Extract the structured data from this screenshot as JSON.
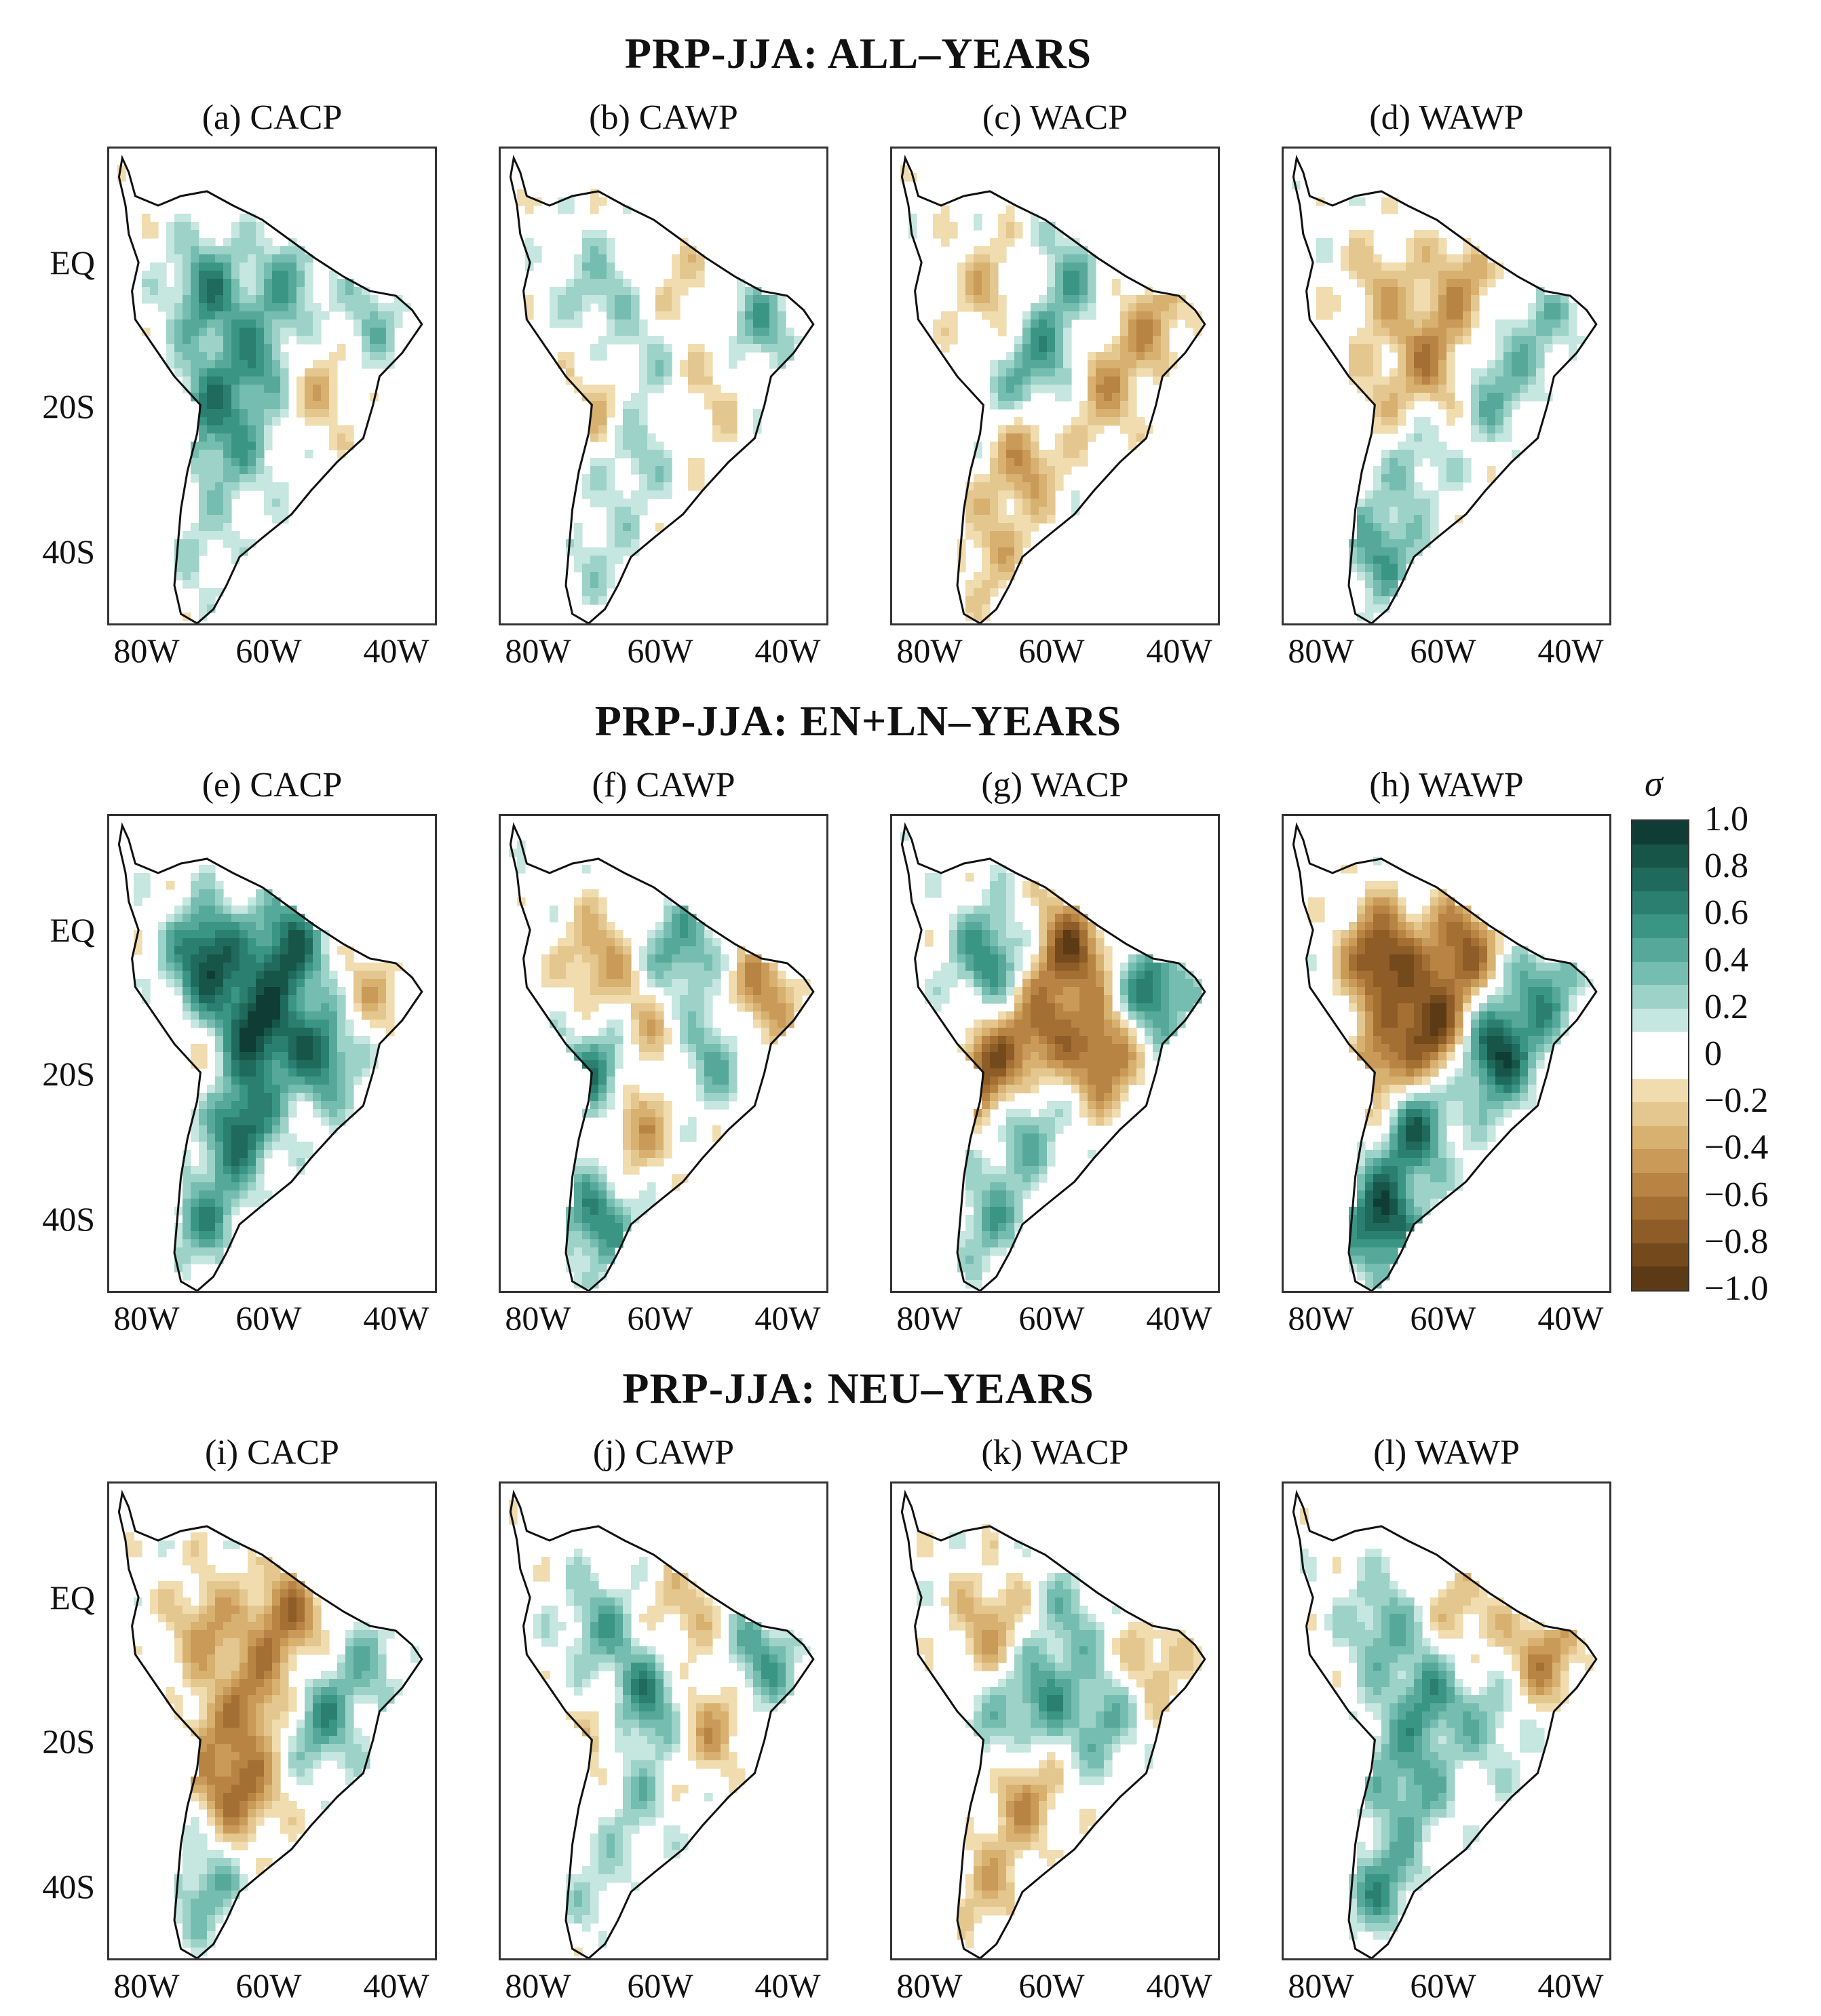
{
  "rows": [
    {
      "title": "PRP-JJA: ALL–YEARS",
      "panels": [
        {
          "label": "(a) CACP",
          "pattern": [
            0.6,
            0.4,
            0.3,
            0.5,
            -0.3,
            0.3,
            0.5,
            0.2
          ]
        },
        {
          "label": "(b) CAWP",
          "pattern": [
            0.3,
            -0.2,
            0.4,
            0.2,
            -0.2,
            0.3,
            -0.3,
            0.2
          ]
        },
        {
          "label": "(c) WACP",
          "pattern": [
            -0.3,
            0.4,
            -0.4,
            0.5,
            -0.4,
            -0.5,
            0.2,
            -0.3
          ]
        },
        {
          "label": "(d) WAWP",
          "pattern": [
            -0.3,
            -0.4,
            0.3,
            -0.5,
            0.4,
            0.3,
            -0.2,
            0.5
          ]
        }
      ]
    },
    {
      "title": "PRP-JJA: EN+LN–YEARS",
      "panels": [
        {
          "label": "(e) CACP",
          "pattern": [
            0.9,
            0.8,
            -0.3,
            0.9,
            0.7,
            0.8,
            -0.2,
            0.5
          ]
        },
        {
          "label": "(f) CAWP",
          "pattern": [
            -0.4,
            0.5,
            -0.5,
            -0.3,
            0.4,
            -0.5,
            0.7,
            0.6
          ]
        },
        {
          "label": "(g) WACP",
          "pattern": [
            0.6,
            -0.8,
            0.7,
            -0.6,
            -0.7,
            0.5,
            -0.8,
            0.4
          ]
        },
        {
          "label": "(h) WAWP",
          "pattern": [
            -0.9,
            -0.7,
            0.5,
            -0.9,
            0.9,
            0.8,
            -0.6,
            0.9
          ]
        }
      ]
    },
    {
      "title": "PRP-JJA: NEU–YEARS",
      "panels": [
        {
          "label": "(i) CACP",
          "pattern": [
            -0.4,
            -0.6,
            0.3,
            -0.5,
            0.5,
            -0.6,
            -0.3,
            0.4
          ]
        },
        {
          "label": "(j) CAWP",
          "pattern": [
            0.4,
            -0.3,
            0.5,
            0.6,
            -0.4,
            0.3,
            -0.3,
            0.2
          ]
        },
        {
          "label": "(k) WACP",
          "pattern": [
            -0.4,
            0.3,
            -0.3,
            0.5,
            0.4,
            -0.5,
            0.3,
            -0.3
          ]
        },
        {
          "label": "(l) WAWP",
          "pattern": [
            0.4,
            -0.3,
            -0.5,
            0.5,
            0.3,
            0.4,
            0.2,
            0.5
          ]
        }
      ]
    }
  ],
  "y_ticks": [
    "EQ",
    "20S",
    "40S"
  ],
  "x_ticks": [
    "80W",
    "60W",
    "40W"
  ],
  "colorbar": {
    "symbol": "σ",
    "labels": [
      "1.0",
      "0.8",
      "0.6",
      "0.4",
      "0.2",
      "0",
      "−0.2",
      "−0.4",
      "−0.6",
      "−0.8",
      "−1.0"
    ],
    "colors": [
      "#0f3d35",
      "#175549",
      "#1f6a5c",
      "#2a7f70",
      "#3b9585",
      "#56a99a",
      "#75bdb0",
      "#9dd2c8",
      "#c6e6e0",
      "#ffffff",
      "#ffffff",
      "#f0dcae",
      "#e4c78e",
      "#d8b070",
      "#c99a58",
      "#b88444",
      "#a46f33",
      "#8d5c27",
      "#744a1d",
      "#5c3a15"
    ]
  }
}
